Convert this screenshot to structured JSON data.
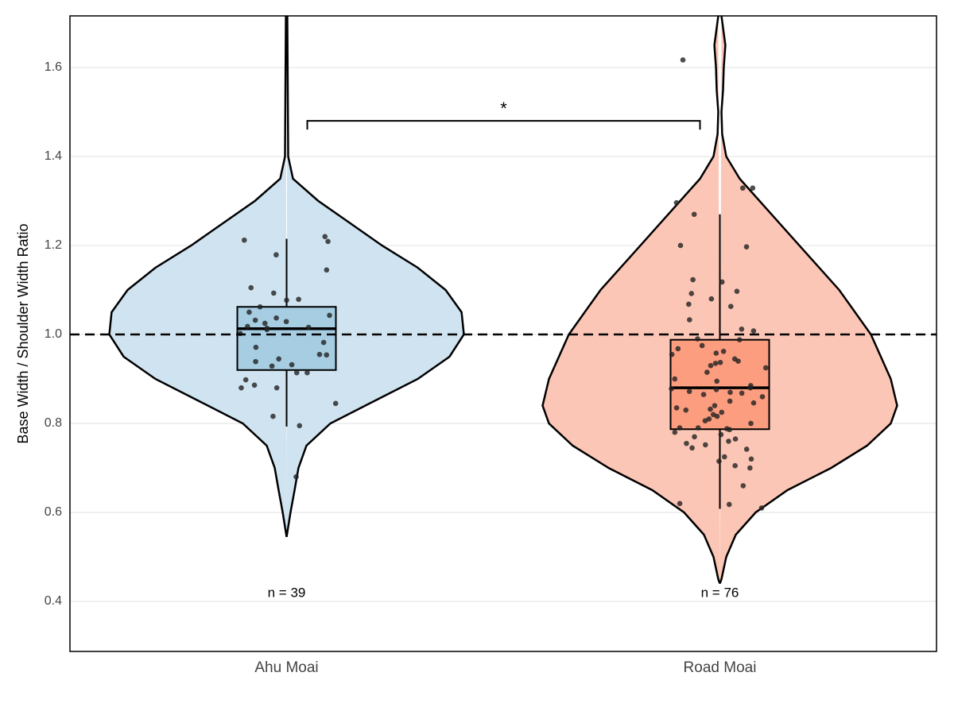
{
  "chart_data": {
    "type": "violin",
    "y_label": "Base Width / Shoulder Width Ratio",
    "categories": [
      "Ahu Moai",
      "Road Moai"
    ],
    "ylim": [
      0.2875,
      1.716
    ],
    "yticks": [
      0.4,
      0.6,
      0.8,
      {
        "value": 1,
        "label": "1.0"
      },
      1.2,
      1.4,
      1.6
    ],
    "grid": true,
    "hline": 1,
    "significance": {
      "label": "*",
      "y": 1.48
    },
    "n_labels": [
      "n = 39",
      "n = 76"
    ],
    "series": [
      {
        "color": "#cfe3f0",
        "box_color": "#a6cde2",
        "violin": {
          "y": [
            0.545,
            0.6,
            0.65,
            0.7,
            0.75,
            0.8,
            0.85,
            0.9,
            0.95,
            1.0,
            1.05,
            1.1,
            1.15,
            1.2,
            1.25,
            1.3,
            1.35,
            1.4,
            1.716
          ],
          "density": [
            0,
            0.022,
            0.045,
            0.067,
            0.112,
            0.247,
            0.493,
            0.74,
            0.919,
            1,
            0.987,
            0.897,
            0.74,
            0.538,
            0.359,
            0.179,
            0.036,
            0.009,
            0.004
          ]
        },
        "box": {
          "whislo": 0.793,
          "q1": 0.92,
          "med": 1.013,
          "q3": 1.062,
          "whishi": 1.215
        },
        "points": [
          1.22,
          1.209,
          1.212,
          1.179,
          1.145,
          1.105,
          1.093,
          1.077,
          1.079,
          1.062,
          1.05,
          1.043,
          1.037,
          1.032,
          1.029,
          1.025,
          1.018,
          1.016,
          1.014,
          1.011,
          1.002,
          0.982,
          0.971,
          0.955,
          0.945,
          0.939,
          0.932,
          0.929,
          0.914,
          0.914,
          0.898,
          0.886,
          0.88,
          0.88,
          0.845,
          0.816,
          0.795,
          0.68,
          0.954
        ]
      },
      {
        "color": "#fcc6b6",
        "box_color": "#fc9d7f",
        "violin": {
          "y": [
            0.44,
            0.45,
            0.5,
            0.55,
            0.6,
            0.65,
            0.7,
            0.75,
            0.8,
            0.84,
            0.9,
            1.0,
            1.1,
            1.2,
            1.25,
            1.3,
            1.35,
            1.4,
            1.45,
            1.5,
            1.55,
            1.6,
            1.65,
            1.716
          ],
          "density": [
            0,
            0.009,
            0.036,
            0.09,
            0.202,
            0.381,
            0.628,
            0.83,
            0.964,
            1,
            0.964,
            0.852,
            0.673,
            0.448,
            0.336,
            0.224,
            0.112,
            0.036,
            0.013,
            0.009,
            0.018,
            0.022,
            0.031,
            0.009
          ]
        },
        "box": {
          "whislo": 0.608,
          "q1": 0.787,
          "med": 0.88,
          "q3": 0.988,
          "whishi": 1.27
        },
        "points": [
          1.617,
          1.329,
          1.329,
          1.296,
          1.27,
          1.2,
          1.197,
          1.123,
          1.118,
          1.097,
          1.092,
          1.08,
          1.068,
          1.063,
          1.033,
          1.012,
          1.008,
          0.99,
          0.988,
          0.975,
          0.968,
          0.962,
          0.958,
          0.955,
          0.945,
          0.94,
          0.937,
          0.935,
          0.93,
          0.925,
          0.915,
          0.9,
          0.885,
          0.88,
          0.878,
          0.876,
          0.872,
          0.868,
          0.865,
          0.86,
          0.85,
          0.846,
          0.84,
          0.835,
          0.832,
          0.83,
          0.825,
          0.82,
          0.816,
          0.81,
          0.806,
          0.8,
          0.79,
          0.788,
          0.786,
          0.78,
          0.775,
          0.77,
          0.765,
          0.76,
          0.755,
          0.752,
          0.745,
          0.742,
          0.725,
          0.72,
          0.715,
          0.705,
          0.7,
          0.66,
          0.62,
          0.618,
          0.61,
          0.79,
          0.87,
          0.895
        ]
      }
    ]
  }
}
